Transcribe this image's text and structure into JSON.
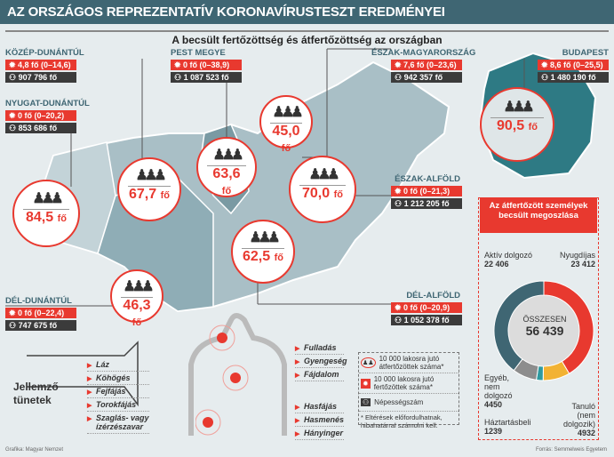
{
  "title": "AZ ORSZÁGOS REPREZENTATÍV KORONAVÍRUSTESZT EREDMÉNYEI",
  "subtitle": "A becsült fertőzöttség és átfertőzöttség az országban",
  "regions": {
    "kozep_dunantul": {
      "name": "KÖZÉP-DUNÁNTÚL",
      "infected": "4,8 fő (0–14,6)",
      "population": "907 796 fő",
      "recovered": "67,7",
      "unit": "fő"
    },
    "nyugat_dunantul": {
      "name": "NYUGAT-DUNÁNTÚL",
      "infected": "0 fő (0–20,2)",
      "population": "853 686 fő",
      "recovered": "84,5",
      "unit": "fő"
    },
    "del_dunantul": {
      "name": "DÉL-DUNÁNTÚL",
      "infected": "0 fő (0–22,4)",
      "population": "747 675 fő",
      "recovered": "46,3",
      "unit": "fő"
    },
    "pest_megye": {
      "name": "PEST MEGYE",
      "infected": "0 fő (0–38,9)",
      "population": "1 087 523 fő",
      "recovered": "63,6",
      "unit": "fő"
    },
    "eszak_magyarorszag": {
      "name": "ÉSZAK-MAGYARORSZÁG",
      "infected": "7,6 fő (0–23,6)",
      "population": "942 357 fő",
      "recovered": "45,0",
      "unit": "fő"
    },
    "budapest": {
      "name": "BUDAPEST",
      "infected": "8,6 fő (0–25,5)",
      "population": "1 480 190 fő",
      "recovered": "90,5",
      "unit": "fő"
    },
    "eszak_alfold": {
      "name": "ÉSZAK-ALFÖLD",
      "infected": "0 fő (0–21,3)",
      "population": "1 212 205 fő",
      "recovered": "70,0",
      "unit": "fő"
    },
    "del_alfold": {
      "name": "DÉL-ALFÖLD",
      "infected": "0 fő (0–20,9)",
      "population": "1 052 378 fő",
      "recovered": "62,5",
      "unit": "fő"
    }
  },
  "pie": {
    "title": "Az átfertőzött személyek becsült megoszlása",
    "total_label": "ÖSSZESEN",
    "total": "56 439",
    "segments": [
      {
        "label": "Nyugdíjas",
        "value": 23412,
        "display": "23 412",
        "color": "#e8392f"
      },
      {
        "label": "Tanuló (nem dolgozik)",
        "value": 4932,
        "display": "4932",
        "color": "#f2b233"
      },
      {
        "label": "Háztartásbeli",
        "value": 1239,
        "display": "1239",
        "color": "#2f9aa0"
      },
      {
        "label": "Egyéb, nem dolgozó",
        "value": 4450,
        "display": "4450",
        "color": "#8d8d8d"
      },
      {
        "label": "Aktív dolgozó",
        "value": 22406,
        "display": "22 406",
        "color": "#3f6673"
      }
    ]
  },
  "symptoms": {
    "heading": "Jellemző tünetek",
    "general": [
      "Láz",
      "Köhögés",
      "Fejfájás",
      "Torokfájás",
      "Szaglás- vagy ízérzészavar"
    ],
    "chest": [
      "Fulladás",
      "Gyengeség",
      "Fájdalom"
    ],
    "abdomen": [
      "Hasfájás",
      "Hasmenés",
      "Hányinger"
    ]
  },
  "legend": {
    "recovered": "10 000 lakosra jutó átfertőzöttek száma*",
    "infected": "10 000 lakosra jutó fertőzöttek száma*",
    "population": "Népességszám",
    "note": "* Eltérések előfordulhatnak, hibahatárral számolni kell."
  },
  "footer": {
    "credit": "Grafika: Magyar Nemzet",
    "source": "Forrás: Semmelweis Egyetem"
  }
}
